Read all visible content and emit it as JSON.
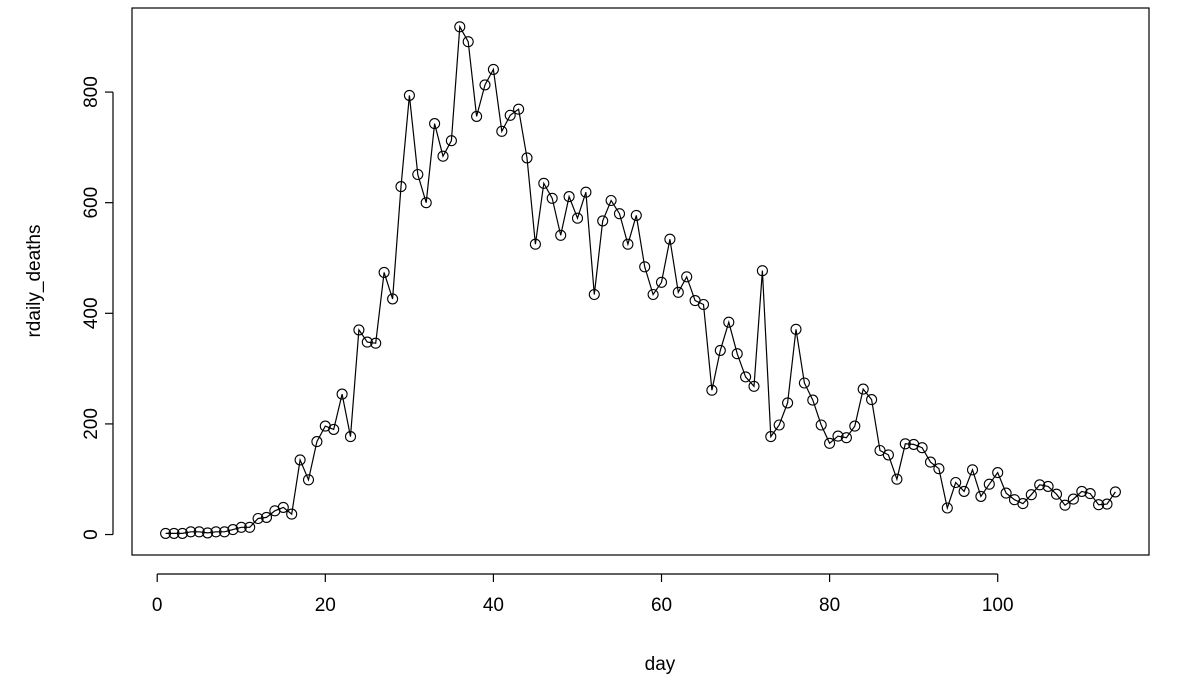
{
  "chart_data": {
    "type": "line",
    "title": "",
    "xlabel": "day",
    "ylabel": "rdaily_deaths",
    "xlim": [
      -3,
      118
    ],
    "ylim": [
      -37,
      952
    ],
    "xticks": [
      0,
      20,
      40,
      60,
      80,
      100
    ],
    "yticks": [
      0,
      200,
      400,
      600,
      800
    ],
    "grid": false,
    "legend": "none",
    "markers": "open-circle",
    "colors": {
      "line": "#000000",
      "axis": "#000000",
      "background": "#ffffff"
    },
    "x": [
      1,
      2,
      3,
      4,
      5,
      6,
      7,
      8,
      9,
      10,
      11,
      12,
      13,
      14,
      15,
      16,
      17,
      18,
      19,
      20,
      21,
      22,
      23,
      24,
      25,
      26,
      27,
      28,
      29,
      30,
      31,
      32,
      33,
      34,
      35,
      36,
      37,
      38,
      39,
      40,
      41,
      42,
      43,
      44,
      45,
      46,
      47,
      48,
      49,
      50,
      51,
      52,
      53,
      54,
      55,
      56,
      57,
      58,
      59,
      60,
      61,
      62,
      63,
      64,
      65,
      66,
      67,
      68,
      69,
      70,
      71,
      72,
      73,
      74,
      75,
      76,
      77,
      78,
      79,
      80,
      81,
      82,
      83,
      84,
      85,
      86,
      87,
      88,
      89,
      90,
      91,
      92,
      93,
      94,
      95,
      96,
      97,
      98,
      99,
      100,
      101,
      102,
      103,
      104,
      105,
      106,
      107,
      108,
      109,
      110,
      111,
      112,
      113,
      114
    ],
    "values": [
      2,
      2,
      2,
      5,
      5,
      3,
      5,
      5,
      9,
      13,
      13,
      29,
      31,
      43,
      49,
      37,
      135,
      99,
      168,
      196,
      190,
      254,
      177,
      370,
      348,
      346,
      474,
      426,
      629,
      794,
      651,
      600,
      743,
      684,
      712,
      918,
      891,
      756,
      813,
      841,
      729,
      758,
      769,
      681,
      525,
      635,
      608,
      541,
      611,
      572,
      619,
      434,
      567,
      604,
      580,
      525,
      577,
      484,
      434,
      456,
      534,
      438,
      466,
      423,
      416,
      261,
      333,
      384,
      327,
      285,
      268,
      477,
      177,
      198,
      238,
      371,
      274,
      243,
      198,
      165,
      178,
      175,
      196,
      263,
      244,
      152,
      144,
      100,
      164,
      163,
      157,
      131,
      119,
      48,
      94,
      78,
      117,
      69,
      91,
      112,
      75,
      63,
      56,
      72,
      90,
      87,
      73,
      53,
      64,
      78,
      74,
      54,
      55,
      77
    ]
  }
}
